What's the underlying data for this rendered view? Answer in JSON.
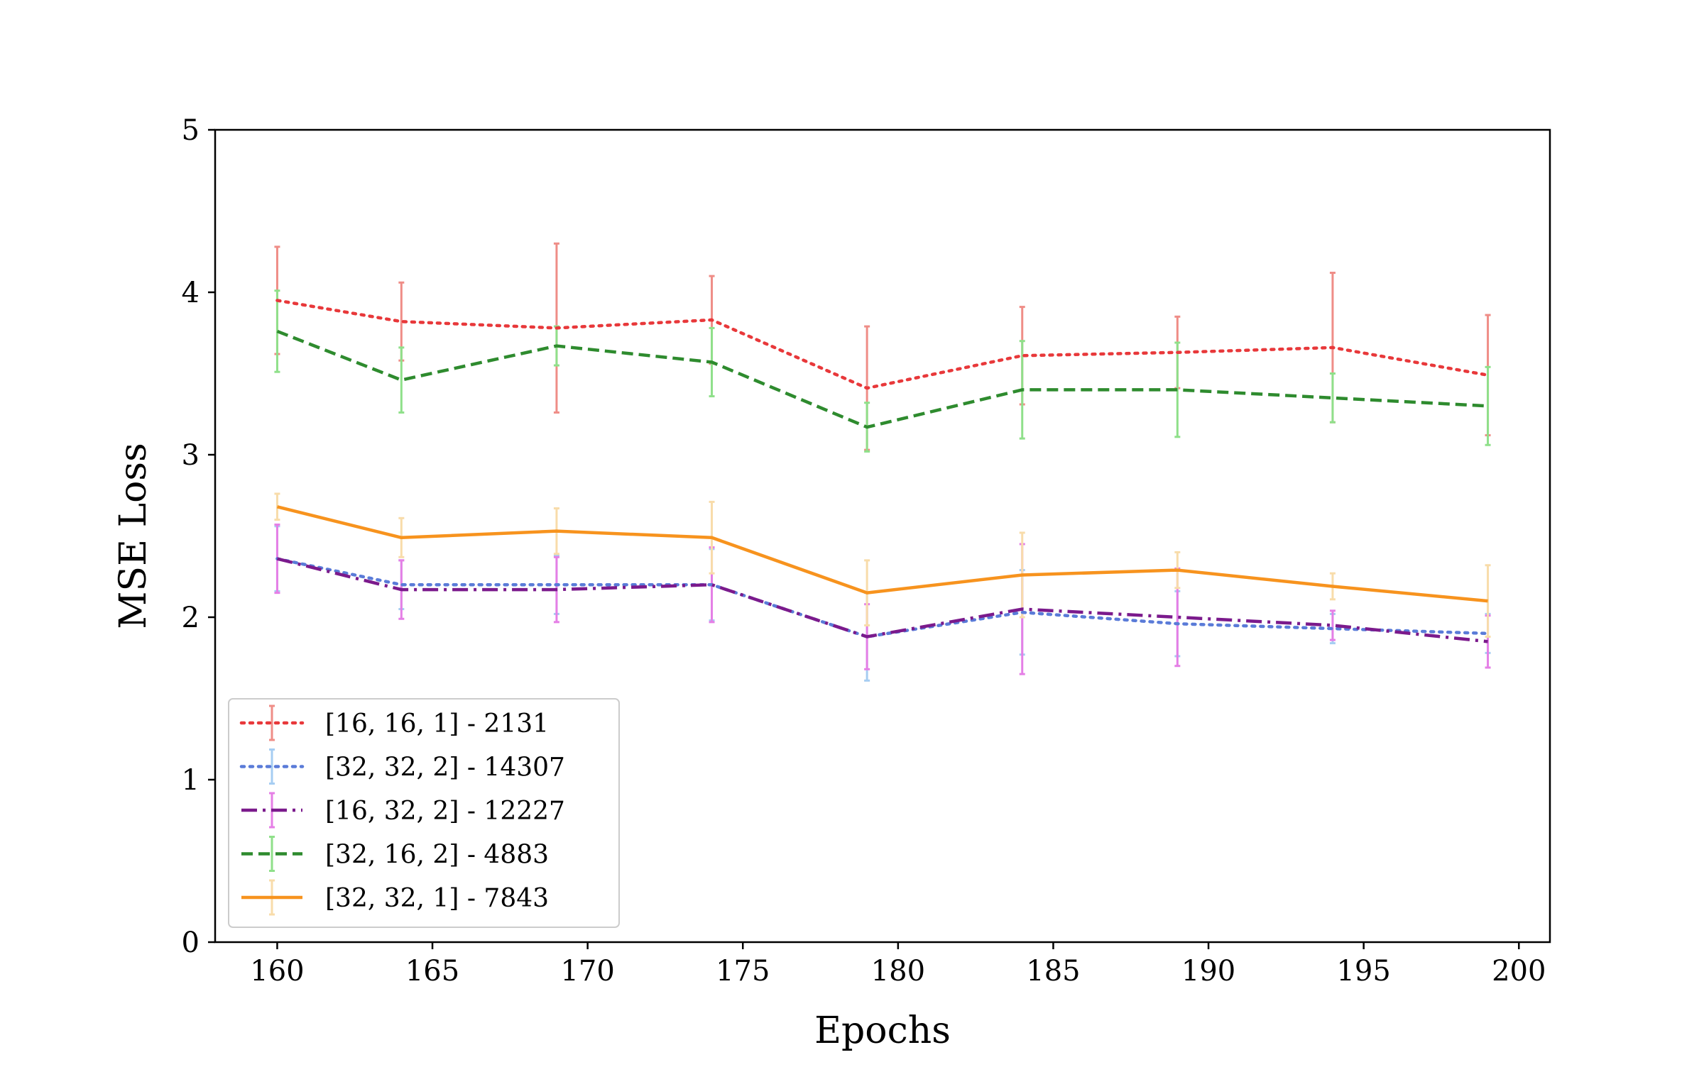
{
  "chart_data": {
    "type": "line",
    "title": "",
    "xlabel": "Epochs",
    "ylabel": "MSE Loss",
    "xlim": [
      158,
      201
    ],
    "ylim": [
      0,
      5
    ],
    "x_ticks": [
      160,
      165,
      170,
      175,
      180,
      185,
      190,
      195,
      200
    ],
    "y_ticks": [
      0,
      1,
      2,
      3,
      4,
      5
    ],
    "grid": false,
    "legend_position": "lower-left",
    "x": [
      160,
      164,
      169,
      174,
      179,
      184,
      189,
      194,
      199
    ],
    "series": [
      {
        "name": "[16, 16, 1] - 2131",
        "line_style": "dotted",
        "color": "#e8383a",
        "error_color": "#ef8d87",
        "values": [
          3.95,
          3.82,
          3.78,
          3.83,
          3.41,
          3.61,
          3.63,
          3.66,
          3.49
        ],
        "errors": [
          0.33,
          0.24,
          0.52,
          0.27,
          0.38,
          0.3,
          0.22,
          0.46,
          0.37
        ]
      },
      {
        "name": "[32, 32, 2] - 14307",
        "line_style": "dotted",
        "color": "#5a7bd8",
        "error_color": "#a6cdf2",
        "values": [
          2.36,
          2.2,
          2.2,
          2.2,
          1.88,
          2.03,
          1.96,
          1.93,
          1.9
        ],
        "errors": [
          0.2,
          0.15,
          0.18,
          0.22,
          0.27,
          0.26,
          0.2,
          0.09,
          0.12
        ]
      },
      {
        "name": "[16, 32, 2] - 12227",
        "line_style": "dashdot",
        "color": "#7b1a8c",
        "error_color": "#e57fe6",
        "values": [
          2.36,
          2.17,
          2.17,
          2.2,
          1.88,
          2.05,
          2.0,
          1.95,
          1.85
        ],
        "errors": [
          0.21,
          0.18,
          0.2,
          0.23,
          0.2,
          0.4,
          0.3,
          0.09,
          0.16
        ]
      },
      {
        "name": "[32, 16, 2] - 4883",
        "line_style": "dashed",
        "color": "#2e8b2e",
        "error_color": "#8fe08a",
        "values": [
          3.76,
          3.46,
          3.67,
          3.57,
          3.17,
          3.4,
          3.4,
          3.35,
          3.3
        ],
        "errors": [
          0.25,
          0.2,
          0.12,
          0.21,
          0.15,
          0.3,
          0.29,
          0.15,
          0.24
        ]
      },
      {
        "name": "[32, 32, 1] - 7843",
        "line_style": "solid",
        "color": "#f7931e",
        "error_color": "#f8dcaa",
        "values": [
          2.68,
          2.49,
          2.53,
          2.49,
          2.15,
          2.26,
          2.29,
          2.19,
          2.1
        ],
        "errors": [
          0.08,
          0.12,
          0.14,
          0.22,
          0.2,
          0.26,
          0.11,
          0.08,
          0.22
        ]
      }
    ]
  }
}
